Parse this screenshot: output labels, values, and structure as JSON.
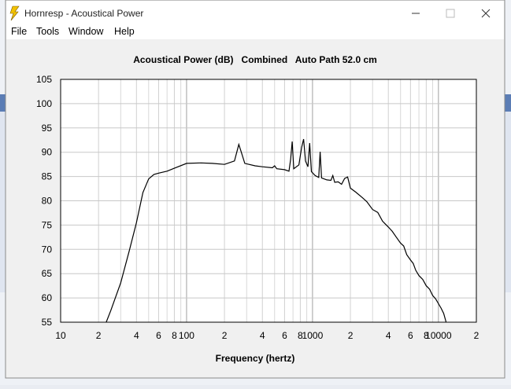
{
  "window": {
    "title": "Hornresp - Acoustical Power"
  },
  "menu": [
    "File",
    "Tools",
    "Window",
    "Help"
  ],
  "chart_data": {
    "type": "line",
    "title": "Acoustical Power (dB)   Combined   Auto Path 52.0 cm",
    "x_label": "Frequency (hertz)",
    "log_x": true,
    "grid": true,
    "xlim": [
      10,
      20000
    ],
    "ylim": [
      55,
      105
    ],
    "xticks": [
      10,
      {
        "value": 20,
        "label": "2"
      },
      {
        "value": 40,
        "label": "4"
      },
      {
        "value": 60,
        "label": "6"
      },
      {
        "value": 80,
        "label": "8"
      },
      100,
      {
        "value": 200,
        "label": "2"
      },
      {
        "value": 400,
        "label": "4"
      },
      {
        "value": 600,
        "label": "6"
      },
      {
        "value": 800,
        "label": "8"
      },
      1000,
      {
        "value": 2000,
        "label": "2"
      },
      {
        "value": 4000,
        "label": "4"
      },
      {
        "value": 6000,
        "label": "6"
      },
      {
        "value": 8000,
        "label": "8"
      },
      10000,
      {
        "value": 20000,
        "label": "2"
      }
    ],
    "xminor_ticks": [
      30,
      50,
      70,
      90,
      300,
      500,
      700,
      900,
      3000,
      5000,
      7000,
      9000
    ],
    "yticks": [
      55,
      60,
      65,
      70,
      75,
      80,
      85,
      90,
      95,
      100,
      105
    ],
    "series": [
      {
        "color": "#000000",
        "x": [
          23,
          25,
          30,
          35,
          40,
          45,
          50,
          55,
          60,
          70,
          80,
          100,
          130,
          160,
          200,
          240,
          260,
          270,
          290,
          350,
          400,
          480,
          500,
          520,
          600,
          650,
          670,
          690,
          710,
          780,
          820,
          850,
          880,
          920,
          950,
          980,
          1050,
          1120,
          1150,
          1180,
          1300,
          1400,
          1450,
          1500,
          1600,
          1700,
          1800,
          1900,
          2000,
          2200,
          2500,
          2700,
          3000,
          3300,
          3600,
          4000,
          4300,
          4600,
          5000,
          5300,
          5600,
          6000,
          6300,
          6600,
          7000,
          7500,
          8000,
          8500,
          9000,
          9500,
          10000,
          10500,
          11000,
          11500
        ],
        "values": [
          55,
          57.4,
          63.1,
          69.6,
          75.5,
          81.7,
          84.5,
          85.4,
          85.7,
          86.1,
          86.7,
          87.7,
          87.8,
          87.7,
          87.5,
          88.2,
          91.6,
          90.3,
          87.7,
          87.2,
          87.0,
          86.8,
          87.2,
          86.6,
          86.4,
          86.1,
          88.5,
          92.2,
          86.6,
          87.4,
          91.0,
          92.7,
          88.2,
          87.0,
          91.9,
          86.0,
          85.2,
          84.8,
          90.1,
          84.7,
          84.3,
          84.2,
          85.2,
          83.8,
          83.9,
          83.4,
          84.6,
          84.9,
          82.6,
          81.8,
          80.6,
          79.8,
          78.2,
          77.6,
          75.8,
          74.6,
          73.7,
          72.6,
          71.3,
          70.7,
          68.9,
          67.8,
          67.1,
          65.7,
          64.6,
          63.8,
          62.5,
          61.8,
          60.5,
          59.8,
          58.8,
          57.9,
          56.8,
          55
        ]
      }
    ]
  }
}
